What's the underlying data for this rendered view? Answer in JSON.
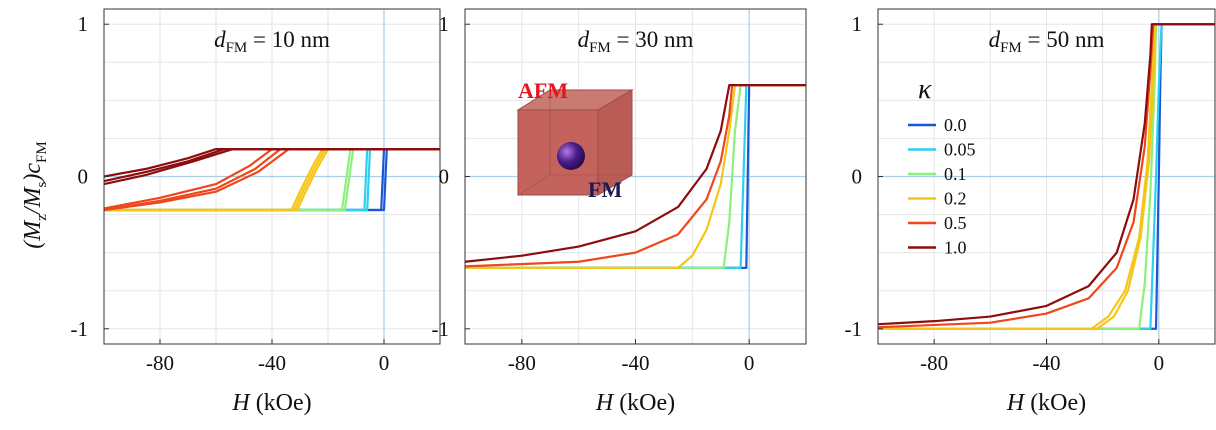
{
  "figure": {
    "ylabel_main": "(M",
    "ylabel_sub1": "z",
    "ylabel_mid": "/M",
    "ylabel_sub2": "s",
    "ylabel_end": ")c",
    "ylabel_sub3": "FM",
    "legend_title": "κ",
    "inset": {
      "afm_label": "AFM",
      "fm_label": "FM"
    }
  },
  "legend": [
    {
      "kappa": "0.0",
      "color": "#1a56d6"
    },
    {
      "kappa": "0.05",
      "color": "#2bd0f0"
    },
    {
      "kappa": "0.1",
      "color": "#8ef07c"
    },
    {
      "kappa": "0.2",
      "color": "#f5c518"
    },
    {
      "kappa": "0.5",
      "color": "#f0461c"
    },
    {
      "kappa": "1.0",
      "color": "#8b0d0d"
    }
  ],
  "chart_data": [
    {
      "type": "line",
      "title_prefix": "d",
      "title_sub": "FM",
      "title_suffix": " = 10 nm",
      "xlabel_italic": "H",
      "xlabel_rest": " (kOe)",
      "xlim": [
        -100,
        20
      ],
      "ylim": [
        -1.1,
        1.1
      ],
      "xticks": [
        -80,
        -40,
        0
      ],
      "yticks": [
        -1,
        0,
        1
      ],
      "ytick_labels": [
        "-1",
        "0",
        "1"
      ],
      "grid": true,
      "series": [
        {
          "kappa": "0.0",
          "color": "#1a56d6",
          "branches": [
            [
              [
                -100,
                -0.22
              ],
              [
                0,
                -0.22
              ],
              [
                1,
                0.18
              ],
              [
                20,
                0.18
              ]
            ],
            [
              [
                -100,
                -0.22
              ],
              [
                -1,
                -0.22
              ],
              [
                0,
                0.18
              ],
              [
                20,
                0.18
              ]
            ]
          ]
        },
        {
          "kappa": "0.05",
          "color": "#2bd0f0",
          "branches": [
            [
              [
                -100,
                -0.22
              ],
              [
                -6,
                -0.22
              ],
              [
                -5,
                0.18
              ],
              [
                20,
                0.18
              ]
            ],
            [
              [
                -100,
                -0.22
              ],
              [
                -7,
                -0.22
              ],
              [
                -6,
                0.18
              ],
              [
                20,
                0.18
              ]
            ]
          ]
        },
        {
          "kappa": "0.1",
          "color": "#8ef07c",
          "branches": [
            [
              [
                -100,
                -0.22
              ],
              [
                -14,
                -0.22
              ],
              [
                -11,
                0.18
              ],
              [
                20,
                0.18
              ]
            ],
            [
              [
                -100,
                -0.22
              ],
              [
                -15,
                -0.22
              ],
              [
                -12,
                0.18
              ],
              [
                20,
                0.18
              ]
            ]
          ]
        },
        {
          "kappa": "0.2",
          "color": "#f5c518",
          "branches": [
            [
              [
                -100,
                -0.22
              ],
              [
                -31,
                -0.22
              ],
              [
                -28,
                -0.1
              ],
              [
                -24,
                0.05
              ],
              [
                -20,
                0.18
              ],
              [
                20,
                0.18
              ]
            ],
            [
              [
                -100,
                -0.22
              ],
              [
                -33,
                -0.22
              ],
              [
                -30,
                -0.1
              ],
              [
                -26,
                0.05
              ],
              [
                -22,
                0.18
              ],
              [
                20,
                0.18
              ]
            ],
            [
              [
                -100,
                -0.22
              ],
              [
                -32,
                -0.22
              ],
              [
                -29,
                -0.1
              ],
              [
                -25,
                0.05
              ],
              [
                -21,
                0.18
              ],
              [
                20,
                0.18
              ]
            ]
          ]
        },
        {
          "kappa": "0.5",
          "color": "#f0461c",
          "branches": [
            [
              [
                -100,
                -0.21
              ],
              [
                -80,
                -0.14
              ],
              [
                -60,
                -0.05
              ],
              [
                -48,
                0.07
              ],
              [
                -40,
                0.18
              ],
              [
                20,
                0.18
              ]
            ],
            [
              [
                -100,
                -0.22
              ],
              [
                -80,
                -0.16
              ],
              [
                -60,
                -0.08
              ],
              [
                -46,
                0.05
              ],
              [
                -37,
                0.18
              ],
              [
                20,
                0.18
              ]
            ],
            [
              [
                -100,
                -0.22
              ],
              [
                -80,
                -0.17
              ],
              [
                -60,
                -0.1
              ],
              [
                -45,
                0.03
              ],
              [
                -34,
                0.18
              ],
              [
                20,
                0.18
              ]
            ]
          ]
        },
        {
          "kappa": "1.0",
          "color": "#8b0d0d",
          "branches": [
            [
              [
                -100,
                -0.0
              ],
              [
                -85,
                0.05
              ],
              [
                -70,
                0.12
              ],
              [
                -60,
                0.18
              ],
              [
                20,
                0.18
              ]
            ],
            [
              [
                -100,
                -0.03
              ],
              [
                -85,
                0.03
              ],
              [
                -70,
                0.1
              ],
              [
                -57,
                0.18
              ],
              [
                20,
                0.18
              ]
            ],
            [
              [
                -100,
                -0.05
              ],
              [
                -85,
                0.01
              ],
              [
                -68,
                0.1
              ],
              [
                -54,
                0.18
              ],
              [
                20,
                0.18
              ]
            ]
          ]
        }
      ]
    },
    {
      "type": "line",
      "title_prefix": "d",
      "title_sub": "FM",
      "title_suffix": " = 30 nm",
      "xlabel_italic": "H",
      "xlabel_rest": " (kOe)",
      "xlim": [
        -100,
        20
      ],
      "ylim": [
        -1.1,
        1.1
      ],
      "xticks": [
        -80,
        -40,
        0
      ],
      "yticks": [
        -1,
        0,
        1
      ],
      "ytick_labels": [
        "-1",
        "0",
        "1"
      ],
      "grid": true,
      "series": [
        {
          "kappa": "0.0",
          "color": "#1a56d6",
          "branches": [
            [
              [
                -100,
                -0.6
              ],
              [
                -1,
                -0.6
              ],
              [
                0,
                0.6
              ],
              [
                20,
                0.6
              ]
            ]
          ]
        },
        {
          "kappa": "0.05",
          "color": "#2bd0f0",
          "branches": [
            [
              [
                -100,
                -0.6
              ],
              [
                -3,
                -0.6
              ],
              [
                -1,
                0.6
              ],
              [
                20,
                0.6
              ]
            ]
          ]
        },
        {
          "kappa": "0.1",
          "color": "#8ef07c",
          "branches": [
            [
              [
                -100,
                -0.6
              ],
              [
                -9,
                -0.6
              ],
              [
                -7,
                -0.3
              ],
              [
                -5,
                0.3
              ],
              [
                -3,
                0.6
              ],
              [
                20,
                0.6
              ]
            ]
          ]
        },
        {
          "kappa": "0.2",
          "color": "#f5c518",
          "branches": [
            [
              [
                -100,
                -0.6
              ],
              [
                -25,
                -0.6
              ],
              [
                -20,
                -0.52
              ],
              [
                -15,
                -0.35
              ],
              [
                -10,
                -0.05
              ],
              [
                -7,
                0.3
              ],
              [
                -5,
                0.6
              ],
              [
                20,
                0.6
              ]
            ]
          ]
        },
        {
          "kappa": "0.5",
          "color": "#f0461c",
          "branches": [
            [
              [
                -100,
                -0.59
              ],
              [
                -60,
                -0.56
              ],
              [
                -40,
                -0.5
              ],
              [
                -25,
                -0.38
              ],
              [
                -15,
                -0.15
              ],
              [
                -10,
                0.1
              ],
              [
                -7,
                0.4
              ],
              [
                -6,
                0.6
              ],
              [
                20,
                0.6
              ]
            ]
          ]
        },
        {
          "kappa": "1.0",
          "color": "#8b0d0d",
          "branches": [
            [
              [
                -100,
                -0.56
              ],
              [
                -80,
                -0.52
              ],
              [
                -60,
                -0.46
              ],
              [
                -40,
                -0.36
              ],
              [
                -25,
                -0.2
              ],
              [
                -15,
                0.05
              ],
              [
                -10,
                0.3
              ],
              [
                -7,
                0.6
              ],
              [
                20,
                0.6
              ]
            ]
          ]
        }
      ]
    },
    {
      "type": "line",
      "title_prefix": "d",
      "title_sub": "FM",
      "title_suffix": " = 50 nm",
      "xlabel_italic": "H",
      "xlabel_rest": " (kOe)",
      "xlim": [
        -100,
        20
      ],
      "ylim": [
        -1.1,
        1.1
      ],
      "xticks": [
        -80,
        -40,
        0
      ],
      "yticks": [
        -1,
        0,
        1
      ],
      "ytick_labels": [
        "-1",
        "0",
        "1"
      ],
      "grid": true,
      "series": [
        {
          "kappa": "0.0",
          "color": "#1a56d6",
          "branches": [
            [
              [
                -100,
                -1
              ],
              [
                -1,
                -1
              ],
              [
                0,
                0
              ],
              [
                0.5,
                0.6
              ],
              [
                1,
                1
              ],
              [
                20,
                1
              ]
            ]
          ]
        },
        {
          "kappa": "0.05",
          "color": "#2bd0f0",
          "branches": [
            [
              [
                -100,
                -1
              ],
              [
                -3,
                -1
              ],
              [
                -1,
                0
              ],
              [
                0,
                0.6
              ],
              [
                1,
                1
              ],
              [
                20,
                1
              ]
            ]
          ]
        },
        {
          "kappa": "0.1",
          "color": "#8ef07c",
          "branches": [
            [
              [
                -100,
                -1
              ],
              [
                -7,
                -1
              ],
              [
                -5,
                -0.7
              ],
              [
                -3,
                -0.1
              ],
              [
                -1.5,
                0.6
              ],
              [
                -1,
                1
              ],
              [
                20,
                1
              ]
            ]
          ]
        },
        {
          "kappa": "0.2",
          "color": "#f5c518",
          "branches": [
            [
              [
                -100,
                -1
              ],
              [
                -24,
                -1
              ],
              [
                -18,
                -0.92
              ],
              [
                -12,
                -0.75
              ],
              [
                -7,
                -0.4
              ],
              [
                -4,
                0.1
              ],
              [
                -2.5,
                0.6
              ],
              [
                -1.5,
                1
              ],
              [
                20,
                1
              ]
            ],
            [
              [
                -100,
                -1
              ],
              [
                -22,
                -1
              ],
              [
                -16,
                -0.92
              ],
              [
                -11,
                -0.75
              ],
              [
                -6.5,
                -0.4
              ],
              [
                -3.5,
                0.1
              ],
              [
                -2,
                0.6
              ],
              [
                -1.2,
                1
              ],
              [
                20,
                1
              ]
            ]
          ]
        },
        {
          "kappa": "0.5",
          "color": "#f0461c",
          "branches": [
            [
              [
                -100,
                -0.99
              ],
              [
                -60,
                -0.96
              ],
              [
                -40,
                -0.9
              ],
              [
                -25,
                -0.8
              ],
              [
                -15,
                -0.6
              ],
              [
                -9,
                -0.3
              ],
              [
                -5,
                0.2
              ],
              [
                -3,
                0.7
              ],
              [
                -2,
                1
              ],
              [
                20,
                1
              ]
            ]
          ]
        },
        {
          "kappa": "1.0",
          "color": "#8b0d0d",
          "branches": [
            [
              [
                -100,
                -0.97
              ],
              [
                -80,
                -0.95
              ],
              [
                -60,
                -0.92
              ],
              [
                -40,
                -0.85
              ],
              [
                -25,
                -0.72
              ],
              [
                -15,
                -0.5
              ],
              [
                -9,
                -0.15
              ],
              [
                -5,
                0.35
              ],
              [
                -3,
                0.8
              ],
              [
                -2.5,
                1
              ],
              [
                20,
                1
              ]
            ]
          ]
        }
      ]
    }
  ]
}
